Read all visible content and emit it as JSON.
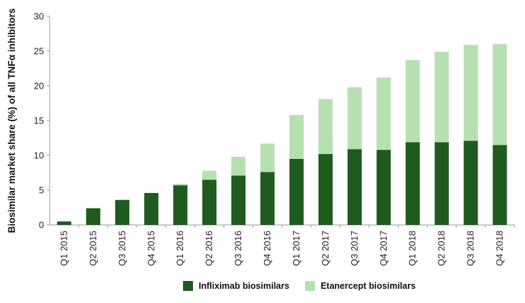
{
  "chart_data": {
    "type": "bar",
    "stacked": true,
    "categories": [
      "Q1 2015",
      "Q2 2015",
      "Q3 2015",
      "Q4 2015",
      "Q1 2016",
      "Q2 2016",
      "Q3 2016",
      "Q4 2016",
      "Q1 2017",
      "Q2 2017",
      "Q3 2017",
      "Q4 2017",
      "Q1 2018",
      "Q2 2018",
      "Q3 2018",
      "Q4 2018"
    ],
    "series": [
      {
        "name": "Infliximab biosimilars",
        "color": "#1f5a1f",
        "values": [
          0.5,
          2.4,
          3.6,
          4.6,
          5.7,
          6.5,
          7.1,
          7.6,
          9.5,
          10.2,
          10.9,
          10.8,
          11.9,
          11.9,
          12.1,
          11.5
        ]
      },
      {
        "name": "Etanercept biosimilars",
        "color": "#b6e0b0",
        "values": [
          0.0,
          0.0,
          0.0,
          0.0,
          0.2,
          1.3,
          2.7,
          4.1,
          6.3,
          7.9,
          8.9,
          10.4,
          11.8,
          13.0,
          13.8,
          14.5
        ]
      }
    ],
    "ylabel": "Biosimilar market share (%) of all TNFα inhibitors",
    "xlabel": "",
    "ylim": [
      0,
      30
    ],
    "yticks": [
      0,
      5,
      10,
      15,
      20,
      25,
      30
    ],
    "grid": false,
    "legend_position": "bottom"
  }
}
